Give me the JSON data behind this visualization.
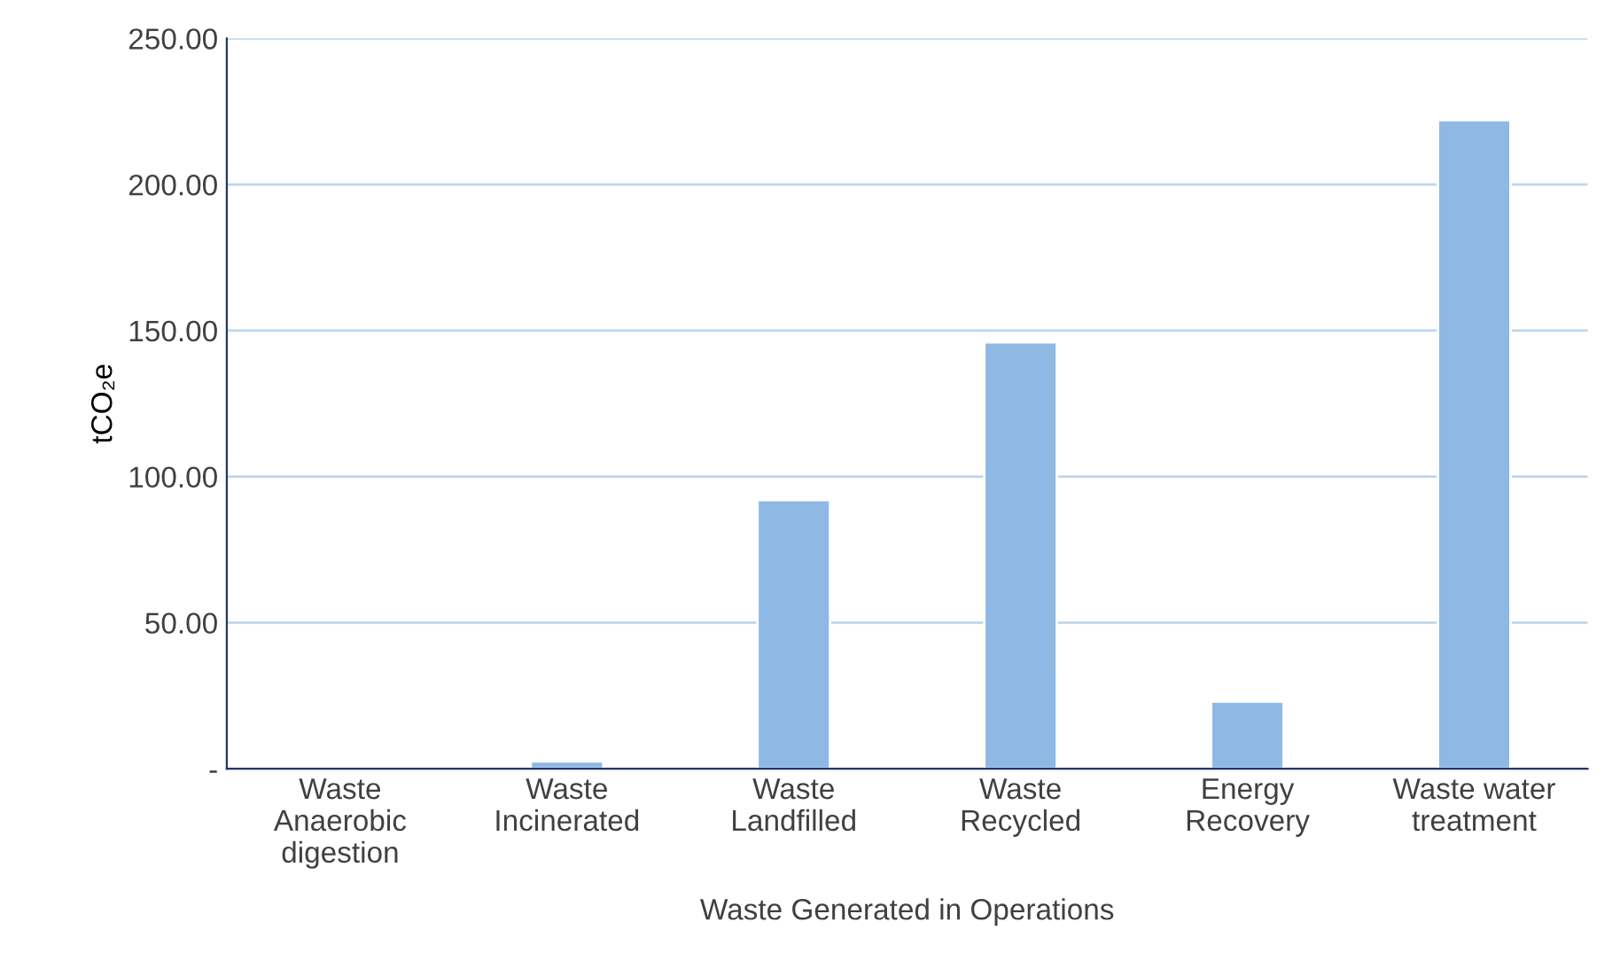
{
  "chart_data": {
    "type": "bar",
    "xlabel": "Waste Generated in Operations",
    "ylabel": "tCO₂e",
    "categories": [
      "Waste\nAnaerobic\ndigestion",
      "Waste\nIncinerated",
      "Waste\nLandfilled",
      "Waste\nRecycled",
      "Energy\nRecovery",
      "Waste water\ntreatment"
    ],
    "values": [
      null,
      2.5,
      92,
      146,
      23,
      222
    ],
    "color": "#8eb9e5",
    "ylim": [
      0,
      250
    ],
    "yticks": [
      {
        "value": 0,
        "label": "-"
      },
      {
        "value": 50,
        "label": "50.00"
      },
      {
        "value": 100,
        "label": "100.00"
      },
      {
        "value": 150,
        "label": "150.00"
      },
      {
        "value": 200,
        "label": "200.00"
      },
      {
        "value": 250,
        "label": "250.00"
      }
    ],
    "grid": "y"
  }
}
